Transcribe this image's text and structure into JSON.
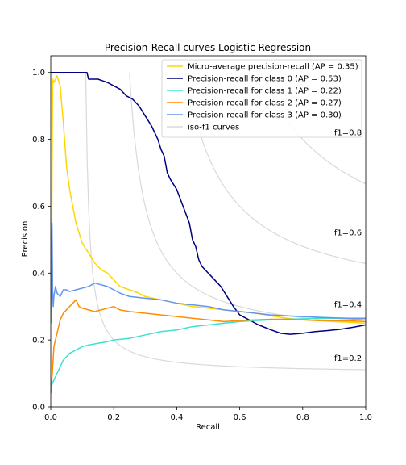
{
  "chart_data": {
    "type": "line",
    "title": "Precision-Recall curves Logistic Regression",
    "xlabel": "Recall",
    "ylabel": "Precision",
    "xlim": [
      0.0,
      1.0
    ],
    "ylim": [
      0.0,
      1.05
    ],
    "xticks": [
      "0.0",
      "0.2",
      "0.4",
      "0.6",
      "0.8",
      "1.0"
    ],
    "yticks": [
      "0.0",
      "0.2",
      "0.4",
      "0.6",
      "0.8",
      "1.0"
    ],
    "grid": false,
    "legend_position": "top-right",
    "iso_f1": {
      "legend_label": "iso-f1 curves",
      "color": "#d9d9d9",
      "values": [
        0.2,
        0.4,
        0.6,
        0.8
      ],
      "labels": [
        "f1=0.2",
        "f1=0.4",
        "f1=0.6",
        "f1=0.8"
      ]
    },
    "series": [
      {
        "name": "Micro-average precision-recall (AP = 0.35)",
        "color": "#ffd700",
        "points": [
          [
            0.0,
            0.25
          ],
          [
            0.003,
            0.5
          ],
          [
            0.006,
            0.98
          ],
          [
            0.01,
            0.97
          ],
          [
            0.02,
            0.99
          ],
          [
            0.03,
            0.96
          ],
          [
            0.04,
            0.85
          ],
          [
            0.05,
            0.72
          ],
          [
            0.06,
            0.65
          ],
          [
            0.07,
            0.6
          ],
          [
            0.08,
            0.55
          ],
          [
            0.1,
            0.49
          ],
          [
            0.12,
            0.46
          ],
          [
            0.14,
            0.43
          ],
          [
            0.16,
            0.41
          ],
          [
            0.18,
            0.4
          ],
          [
            0.2,
            0.38
          ],
          [
            0.22,
            0.36
          ],
          [
            0.25,
            0.35
          ],
          [
            0.28,
            0.34
          ],
          [
            0.3,
            0.33
          ],
          [
            0.35,
            0.32
          ],
          [
            0.4,
            0.31
          ],
          [
            0.45,
            0.3
          ],
          [
            0.5,
            0.295
          ],
          [
            0.55,
            0.29
          ],
          [
            0.6,
            0.285
          ],
          [
            0.65,
            0.28
          ],
          [
            0.7,
            0.272
          ],
          [
            0.75,
            0.265
          ],
          [
            0.8,
            0.26
          ],
          [
            0.85,
            0.258
          ],
          [
            0.9,
            0.255
          ],
          [
            0.95,
            0.253
          ],
          [
            1.0,
            0.25
          ]
        ]
      },
      {
        "name": "Precision-recall for class 0 (AP = 0.53)",
        "color": "#000080",
        "points": [
          [
            0.0,
            1.0
          ],
          [
            0.05,
            1.0
          ],
          [
            0.1,
            1.0
          ],
          [
            0.115,
            1.0
          ],
          [
            0.12,
            0.98
          ],
          [
            0.15,
            0.98
          ],
          [
            0.18,
            0.97
          ],
          [
            0.2,
            0.96
          ],
          [
            0.22,
            0.95
          ],
          [
            0.24,
            0.93
          ],
          [
            0.26,
            0.92
          ],
          [
            0.28,
            0.9
          ],
          [
            0.3,
            0.87
          ],
          [
            0.32,
            0.84
          ],
          [
            0.34,
            0.8
          ],
          [
            0.35,
            0.77
          ],
          [
            0.36,
            0.75
          ],
          [
            0.37,
            0.7
          ],
          [
            0.38,
            0.68
          ],
          [
            0.4,
            0.65
          ],
          [
            0.42,
            0.6
          ],
          [
            0.44,
            0.55
          ],
          [
            0.45,
            0.5
          ],
          [
            0.46,
            0.48
          ],
          [
            0.47,
            0.44
          ],
          [
            0.48,
            0.42
          ],
          [
            0.5,
            0.4
          ],
          [
            0.52,
            0.38
          ],
          [
            0.54,
            0.36
          ],
          [
            0.56,
            0.33
          ],
          [
            0.58,
            0.3
          ],
          [
            0.6,
            0.275
          ],
          [
            0.63,
            0.26
          ],
          [
            0.66,
            0.245
          ],
          [
            0.7,
            0.23
          ],
          [
            0.73,
            0.22
          ],
          [
            0.76,
            0.217
          ],
          [
            0.8,
            0.22
          ],
          [
            0.84,
            0.225
          ],
          [
            0.88,
            0.228
          ],
          [
            0.92,
            0.232
          ],
          [
            0.96,
            0.238
          ],
          [
            1.0,
            0.245
          ]
        ]
      },
      {
        "name": "Precision-recall for class 1 (AP = 0.22)",
        "color": "#40e0d0",
        "points": [
          [
            0.0,
            0.05
          ],
          [
            0.005,
            0.07
          ],
          [
            0.01,
            0.08
          ],
          [
            0.02,
            0.1
          ],
          [
            0.03,
            0.12
          ],
          [
            0.04,
            0.14
          ],
          [
            0.05,
            0.15
          ],
          [
            0.06,
            0.16
          ],
          [
            0.08,
            0.17
          ],
          [
            0.1,
            0.18
          ],
          [
            0.12,
            0.185
          ],
          [
            0.15,
            0.19
          ],
          [
            0.18,
            0.195
          ],
          [
            0.2,
            0.2
          ],
          [
            0.25,
            0.205
          ],
          [
            0.3,
            0.215
          ],
          [
            0.35,
            0.225
          ],
          [
            0.4,
            0.23
          ],
          [
            0.45,
            0.24
          ],
          [
            0.5,
            0.245
          ],
          [
            0.55,
            0.25
          ],
          [
            0.6,
            0.255
          ],
          [
            0.65,
            0.258
          ],
          [
            0.7,
            0.26
          ],
          [
            0.75,
            0.262
          ],
          [
            0.8,
            0.263
          ],
          [
            0.85,
            0.265
          ],
          [
            0.9,
            0.265
          ],
          [
            0.95,
            0.263
          ],
          [
            1.0,
            0.26
          ]
        ]
      },
      {
        "name": "Precision-recall for class 2 (AP = 0.27)",
        "color": "#ff8c00",
        "points": [
          [
            0.0,
            0.04
          ],
          [
            0.005,
            0.1
          ],
          [
            0.01,
            0.18
          ],
          [
            0.02,
            0.22
          ],
          [
            0.03,
            0.26
          ],
          [
            0.04,
            0.28
          ],
          [
            0.05,
            0.29
          ],
          [
            0.06,
            0.3
          ],
          [
            0.07,
            0.31
          ],
          [
            0.08,
            0.32
          ],
          [
            0.09,
            0.3
          ],
          [
            0.1,
            0.295
          ],
          [
            0.12,
            0.29
          ],
          [
            0.14,
            0.285
          ],
          [
            0.16,
            0.29
          ],
          [
            0.18,
            0.295
          ],
          [
            0.2,
            0.3
          ],
          [
            0.22,
            0.29
          ],
          [
            0.25,
            0.285
          ],
          [
            0.3,
            0.28
          ],
          [
            0.35,
            0.275
          ],
          [
            0.4,
            0.27
          ],
          [
            0.45,
            0.265
          ],
          [
            0.5,
            0.26
          ],
          [
            0.55,
            0.255
          ],
          [
            0.6,
            0.258
          ],
          [
            0.65,
            0.26
          ],
          [
            0.7,
            0.262
          ],
          [
            0.75,
            0.262
          ],
          [
            0.8,
            0.26
          ],
          [
            0.85,
            0.258
          ],
          [
            0.9,
            0.258
          ],
          [
            0.95,
            0.257
          ],
          [
            1.0,
            0.255
          ]
        ]
      },
      {
        "name": "Precision-recall for class 3 (AP = 0.30)",
        "color": "#6495ed",
        "points": [
          [
            0.0,
            0.25
          ],
          [
            0.002,
            0.5
          ],
          [
            0.004,
            0.55
          ],
          [
            0.006,
            0.35
          ],
          [
            0.008,
            0.3
          ],
          [
            0.01,
            0.33
          ],
          [
            0.015,
            0.36
          ],
          [
            0.02,
            0.34
          ],
          [
            0.03,
            0.33
          ],
          [
            0.04,
            0.35
          ],
          [
            0.05,
            0.35
          ],
          [
            0.06,
            0.345
          ],
          [
            0.08,
            0.35
          ],
          [
            0.1,
            0.355
          ],
          [
            0.12,
            0.36
          ],
          [
            0.14,
            0.37
          ],
          [
            0.16,
            0.365
          ],
          [
            0.18,
            0.36
          ],
          [
            0.2,
            0.35
          ],
          [
            0.22,
            0.34
          ],
          [
            0.25,
            0.33
          ],
          [
            0.3,
            0.325
          ],
          [
            0.35,
            0.32
          ],
          [
            0.4,
            0.31
          ],
          [
            0.45,
            0.305
          ],
          [
            0.5,
            0.3
          ],
          [
            0.55,
            0.29
          ],
          [
            0.6,
            0.285
          ],
          [
            0.65,
            0.28
          ],
          [
            0.7,
            0.275
          ],
          [
            0.75,
            0.272
          ],
          [
            0.8,
            0.27
          ],
          [
            0.85,
            0.268
          ],
          [
            0.9,
            0.266
          ],
          [
            0.95,
            0.265
          ],
          [
            1.0,
            0.265
          ]
        ]
      }
    ]
  }
}
